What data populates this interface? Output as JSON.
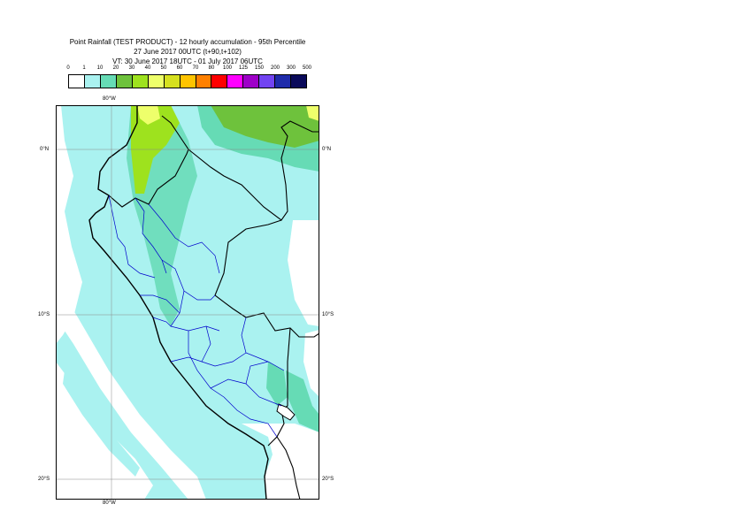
{
  "header": {
    "title": "Point Rainfall (TEST PRODUCT) - 12 hourly accumulation - 95th Percentile",
    "base_time": "27 June 2017 00UTC (t+90,t+102)",
    "valid_time": "VT: 30 June 2017 18UTC - 01 July 2017 06UTC"
  },
  "legend": {
    "labels": [
      "0",
      "1",
      "10",
      "20",
      "30",
      "40",
      "50",
      "60",
      "70",
      "80",
      "100",
      "125",
      "150",
      "200",
      "300",
      "500"
    ],
    "colors": [
      "#ffffff",
      "#aaf2f0",
      "#66dbb5",
      "#6ec23c",
      "#9ee21e",
      "#eeff6b",
      "#d6e01f",
      "#ffc400",
      "#ff8000",
      "#ff0000",
      "#ff00ff",
      "#9e00c8",
      "#7244f2",
      "#1f2baa",
      "#0a0a5a"
    ]
  },
  "axes": {
    "top_lon": "80°W",
    "bottom_lon": "80°W",
    "lat_0_left": "0°N",
    "lat_0_right": "0°N",
    "lat_10_left": "10°S",
    "lat_10_right": "10°S",
    "lat_20_left": "20°S",
    "lat_20_right": "20°S"
  },
  "map_colors": {
    "light_cyan": "#aaf2f0",
    "teal": "#66dbb5",
    "green": "#6ec23c",
    "lime": "#9ee21e",
    "yellow": "#eeff6b",
    "land_white": "#ffffff",
    "borders_national": "#000000",
    "borders_regional": "#0000cc"
  }
}
